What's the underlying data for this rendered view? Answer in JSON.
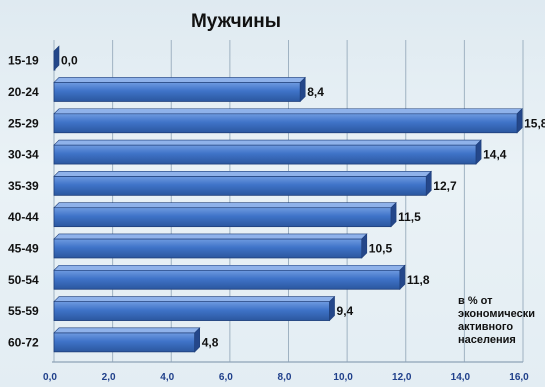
{
  "chart_data": {
    "type": "bar",
    "orientation": "horizontal",
    "title": "Мужчины",
    "categories": [
      "15-19",
      "20-24",
      "25-29",
      "30-34",
      "35-39",
      "40-44",
      "45-49",
      "50-54",
      "55-59",
      "60-72"
    ],
    "values": [
      0.0,
      8.4,
      15.8,
      14.4,
      12.7,
      11.5,
      10.5,
      11.8,
      9.4,
      4.8
    ],
    "value_labels": [
      "0,0",
      "8,4",
      "15,8",
      "14,4",
      "12,7",
      "11,5",
      "10,5",
      "11,8",
      "9,4",
      "4,8"
    ],
    "xlim": [
      0,
      16
    ],
    "xticks": [
      "0,0",
      "2,0",
      "4,0",
      "6,0",
      "8,0",
      "10,0",
      "12,0",
      "14,0",
      "16,0"
    ],
    "annotation": [
      "в % от",
      "экономически",
      "активного",
      "населения"
    ],
    "grid": true,
    "bar_color": "#3a6fc4"
  }
}
